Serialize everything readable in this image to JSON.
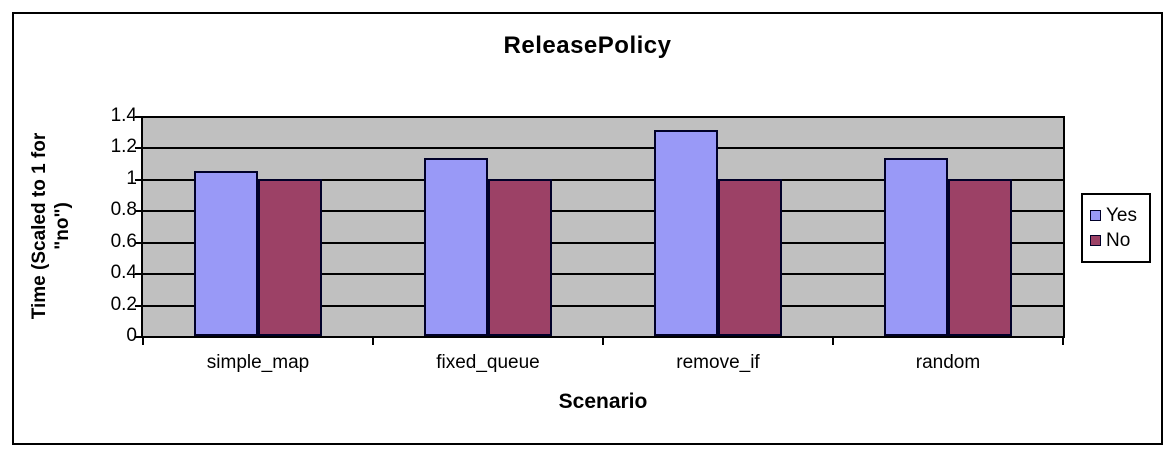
{
  "chart_data": {
    "type": "bar",
    "title": "ReleasePolicy",
    "xlabel": "Scenario",
    "ylabel": "Time (Scaled to 1 for \"no\")",
    "ylabel_lines": [
      "Time (Scaled to 1 for",
      "\"no\")"
    ],
    "categories": [
      "simple_map",
      "fixed_queue",
      "remove_if",
      "random"
    ],
    "series": [
      {
        "name": "Yes",
        "color": "#9999F7",
        "values": [
          1.05,
          1.13,
          1.31,
          1.13
        ]
      },
      {
        "name": "No",
        "color": "#9C4166",
        "values": [
          1.0,
          1.0,
          1.0,
          1.0
        ]
      }
    ],
    "ylim": [
      0,
      1.4
    ],
    "ytick_step": 0.2,
    "yticks": [
      "0",
      "0.2",
      "0.4",
      "0.6",
      "0.8",
      "1",
      "1.2",
      "1.4"
    ],
    "grid": true,
    "legend_position": "right",
    "plot_bg": "#C0C0C0",
    "bar_border": "#000028",
    "frame_border": "#000000"
  }
}
